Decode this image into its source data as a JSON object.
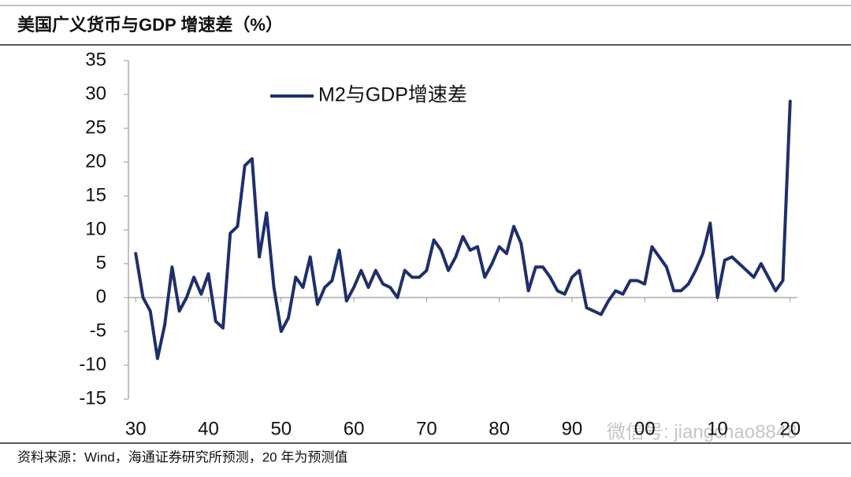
{
  "chart_data": {
    "type": "line",
    "title": "美国广义货币与GDP 增速差（%）",
    "source": "资料来源：Wind，海通证券研究所预测，20 年为预测值",
    "watermark": "微信号: jiangchao8848",
    "x": [
      1930,
      1931,
      1932,
      1933,
      1934,
      1935,
      1936,
      1937,
      1938,
      1939,
      1940,
      1941,
      1942,
      1943,
      1944,
      1945,
      1946,
      1947,
      1948,
      1949,
      1950,
      1951,
      1952,
      1953,
      1954,
      1955,
      1956,
      1957,
      1958,
      1959,
      1960,
      1961,
      1962,
      1963,
      1964,
      1965,
      1966,
      1967,
      1968,
      1969,
      1970,
      1971,
      1972,
      1973,
      1974,
      1975,
      1976,
      1977,
      1978,
      1979,
      1980,
      1981,
      1982,
      1983,
      1984,
      1985,
      1986,
      1987,
      1988,
      1989,
      1990,
      1991,
      1992,
      1993,
      1994,
      1995,
      1996,
      1997,
      1998,
      1999,
      2000,
      2001,
      2002,
      2003,
      2004,
      2005,
      2006,
      2007,
      2008,
      2009,
      2010,
      2011,
      2012,
      2013,
      2014,
      2015,
      2016,
      2017,
      2018,
      2019,
      2020
    ],
    "series": [
      {
        "name": "M2与GDP增速差",
        "color": "#1f2f6b",
        "values": [
          6.5,
          0,
          -2,
          -9,
          -4,
          4.5,
          -2,
          0,
          3,
          0.5,
          3.5,
          -3.5,
          -4.5,
          9.5,
          10.5,
          19.5,
          20.5,
          6,
          12.5,
          1.5,
          -5,
          -3,
          3,
          1.5,
          6,
          -1,
          1.5,
          2.5,
          7,
          -0.5,
          1.5,
          4,
          1.5,
          4,
          2,
          1.5,
          0,
          4,
          3,
          3,
          4,
          8.5,
          7,
          4,
          6,
          9,
          7,
          7.5,
          3,
          5,
          7.5,
          6.5,
          10.5,
          8,
          1,
          4.5,
          4.5,
          3,
          1,
          0.5,
          3,
          4,
          -1.5,
          -2,
          -2.5,
          -0.5,
          1,
          0.5,
          2.5,
          2.5,
          2,
          7.5,
          6,
          4.5,
          1,
          1,
          2,
          4,
          6.5,
          11,
          0,
          5.5,
          6,
          5,
          4,
          3,
          5,
          3,
          1,
          2.5,
          29
        ]
      }
    ],
    "xlim": [
      1929,
      2021
    ],
    "xticks": [
      {
        "value": 1930,
        "label": "30"
      },
      {
        "value": 1940,
        "label": "40"
      },
      {
        "value": 1950,
        "label": "50"
      },
      {
        "value": 1960,
        "label": "60"
      },
      {
        "value": 1970,
        "label": "70"
      },
      {
        "value": 1980,
        "label": "80"
      },
      {
        "value": 1990,
        "label": "90"
      },
      {
        "value": 2000,
        "label": "00"
      },
      {
        "value": 2010,
        "label": "10"
      },
      {
        "value": 2020,
        "label": "20"
      }
    ],
    "ylim": [
      -15,
      35
    ],
    "yticks": [
      -15,
      -10,
      -5,
      0,
      5,
      10,
      15,
      20,
      25,
      30,
      35
    ]
  }
}
